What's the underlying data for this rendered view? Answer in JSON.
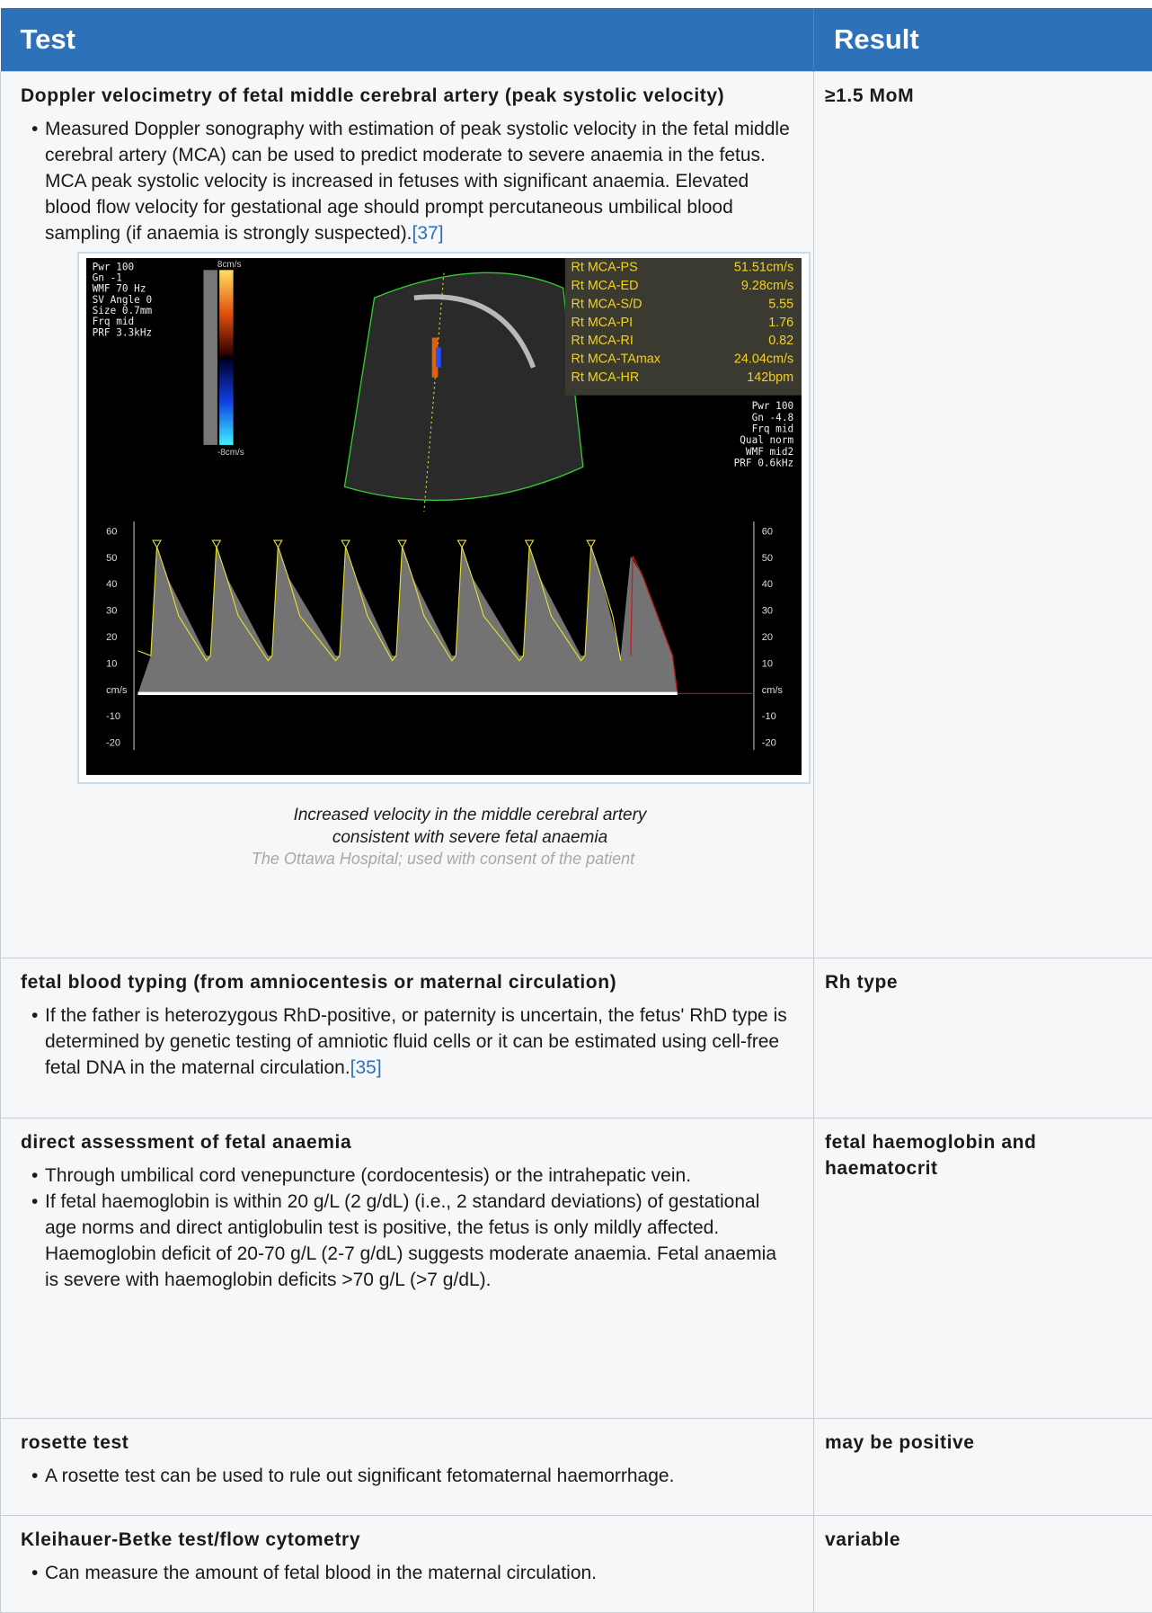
{
  "table": {
    "headers": [
      "Test",
      "Result"
    ],
    "rows": [
      {
        "test": "Doppler velocimetry of fetal middle cerebral artery (peak systolic velocity)",
        "result": "≥1.5 MoM",
        "bullets": [
          {
            "text": "Measured Doppler sonography with estimation of peak systolic velocity in the fetal middle cerebral artery (MCA) can be used to predict moderate to severe anaemia in the fetus. MCA peak systolic velocity is increased in fetuses with significant anaemia. Elevated blood flow velocity for gestational age should prompt percutaneous umbilical blood sampling (if anaemia is strongly suspected).",
            "ref": "[37]"
          }
        ],
        "figure": {
          "left_settings": [
            "Pwr 100",
            "Gn -1",
            "WMF 70 Hz",
            "SV Angle  0",
            "Size 0.7mm",
            "Frq mid",
            "PRF 3.3kHz"
          ],
          "scale_top": "8cm/s",
          "scale_bottom": "-8cm/s",
          "measurements": [
            {
              "label": "Rt MCA-PS",
              "value": "51.51cm/s"
            },
            {
              "label": "Rt MCA-ED",
              "value": "9.28cm/s"
            },
            {
              "label": "Rt MCA-S/D",
              "value": "5.55"
            },
            {
              "label": "Rt MCA-PI",
              "value": "1.76"
            },
            {
              "label": "Rt MCA-RI",
              "value": "0.82"
            },
            {
              "label": "Rt MCA-TAmax",
              "value": "24.04cm/s"
            },
            {
              "label": "Rt MCA-HR",
              "value": "142bpm"
            }
          ],
          "right_settings": [
            "Pwr 100",
            "Gn -4.8",
            "Frq mid",
            "Qual norm",
            "WMF mid2",
            "PRF 0.6kHz"
          ],
          "axis_labels": [
            "60",
            "50",
            "40",
            "30",
            "20",
            "10",
            "cm/s",
            "-10",
            "-20"
          ],
          "caption": "Increased velocity in the middle cerebral artery consistent with severe fetal anaemia",
          "credit": "The Ottawa Hospital; used with consent of the patient"
        }
      },
      {
        "test": "fetal blood typing (from amniocentesis or maternal circulation)",
        "result": "Rh type",
        "bullets": [
          {
            "text": "If the father is heterozygous RhD-positive, or paternity is uncertain, the fetus' RhD type is determined by genetic testing of amniotic fluid cells or it can be estimated using cell-free fetal DNA in the maternal circulation.",
            "ref": "[35]"
          }
        ]
      },
      {
        "test": "direct assessment of fetal anaemia",
        "result": "fetal haemoglobin and haematocrit",
        "bullets": [
          {
            "text": "Through umbilical cord venepuncture (cordocentesis) or the intrahepatic vein."
          },
          {
            "text": "If fetal haemoglobin is within 20 g/L (2 g/dL) (i.e., 2 standard deviations) of gestational age norms and direct antiglobulin test is positive, the fetus is only mildly affected. Haemoglobin deficit of 20-70 g/L (2-7 g/dL) suggests moderate anaemia. Fetal anaemia is severe with haemoglobin deficits >70 g/L (>7 g/dL)."
          }
        ]
      },
      {
        "test": "rosette test",
        "result": "may be positive",
        "bullets": [
          {
            "text": "A rosette test can be used to rule out significant fetomaternal haemorrhage."
          }
        ]
      },
      {
        "test": "Kleihauer-Betke test/flow cytometry",
        "result": "variable",
        "bullets": [
          {
            "text": "Can measure the amount of fetal blood in the maternal circulation."
          }
        ]
      }
    ]
  }
}
